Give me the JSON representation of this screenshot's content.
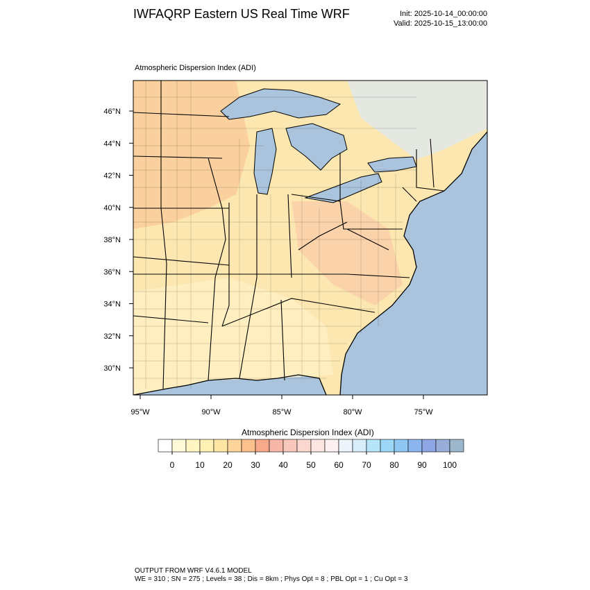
{
  "header": {
    "title": "IWFAQRP Eastern US Real Time WRF",
    "init": "Init: 2025-10-14_00:00:00",
    "valid": "Valid: 2025-10-15_13:00:00"
  },
  "map": {
    "title": "Atmospheric Dispersion Index   (ADI)",
    "lat_labels": [
      "46°N",
      "44°N",
      "42°N",
      "40°N",
      "38°N",
      "36°N",
      "34°N",
      "32°N",
      "30°N"
    ],
    "lon_labels": [
      "95°W",
      "90°W",
      "85°W",
      "80°W",
      "75°W"
    ]
  },
  "colorbar": {
    "title": "Atmospheric Dispersion Index  (ADI)",
    "ticks": [
      0,
      10,
      20,
      30,
      40,
      50,
      60,
      70,
      80,
      90,
      100
    ],
    "colors": [
      "#ffffff",
      "#fffbd8",
      "#fff6c4",
      "#fff0b4",
      "#ffe6a2",
      "#fdd49a",
      "#fbc08c",
      "#f6a98b",
      "#f6b6a8",
      "#f8c8bd",
      "#fad8d0",
      "#fde6e2",
      "#fdf1f1",
      "#eef4fc",
      "#d8eefb",
      "#b6e4f8",
      "#9cd8f6",
      "#8ec8f2",
      "#8cb4ee",
      "#8ea6e4",
      "#98aed8",
      "#9cb6cc"
    ]
  },
  "footer": {
    "line1": "OUTPUT FROM WRF V4.6.1 MODEL",
    "line2": "WE = 310 ; SN = 275 ; Levels = 38 ; Dis = 8km ; Phys Opt = 8 ; PBL Opt = 1 ; Cu Opt = 3"
  }
}
